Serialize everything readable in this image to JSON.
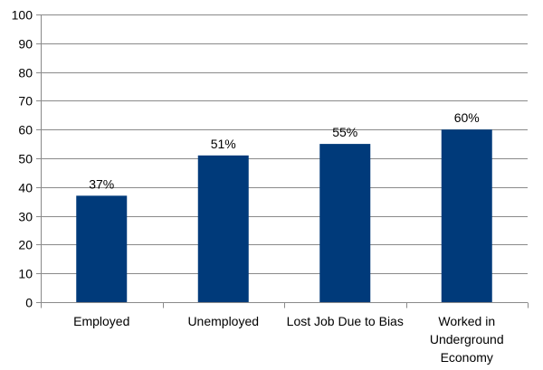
{
  "chart_data": {
    "type": "bar",
    "title": "",
    "xlabel": "",
    "ylabel": "",
    "categories": [
      [
        "Employed"
      ],
      [
        "Unemployed"
      ],
      [
        "Lost Job Due to Bias"
      ],
      [
        "Worked in",
        "Underground",
        "Economy"
      ]
    ],
    "values": [
      37,
      51,
      55,
      60
    ],
    "data_labels": [
      "37%",
      "51%",
      "55%",
      "60%"
    ],
    "ylim": [
      0,
      100
    ],
    "yticks": [
      0,
      10,
      20,
      30,
      40,
      50,
      60,
      70,
      80,
      90,
      100
    ],
    "ytick_labels": [
      "0",
      "10",
      "20",
      "30",
      "40",
      "50",
      "60",
      "70",
      "80",
      "90",
      "100"
    ],
    "grid": true,
    "legend": "none",
    "colors": {
      "bar": "#003a7a",
      "grid": "#8a8a8a",
      "axis": "#8a8a8a",
      "text": "#000000"
    }
  }
}
